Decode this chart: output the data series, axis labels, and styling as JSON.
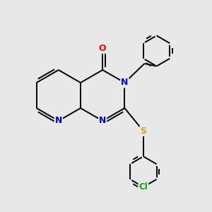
{
  "background_color": "#e8e8e8",
  "bond_color": "#000000",
  "atom_colors": {
    "N": "#0000cc",
    "O": "#ff0000",
    "S": "#ccaa00",
    "Cl": "#00aa00",
    "C": "#000000"
  },
  "figsize": [
    3.0,
    3.0
  ],
  "dpi": 100
}
